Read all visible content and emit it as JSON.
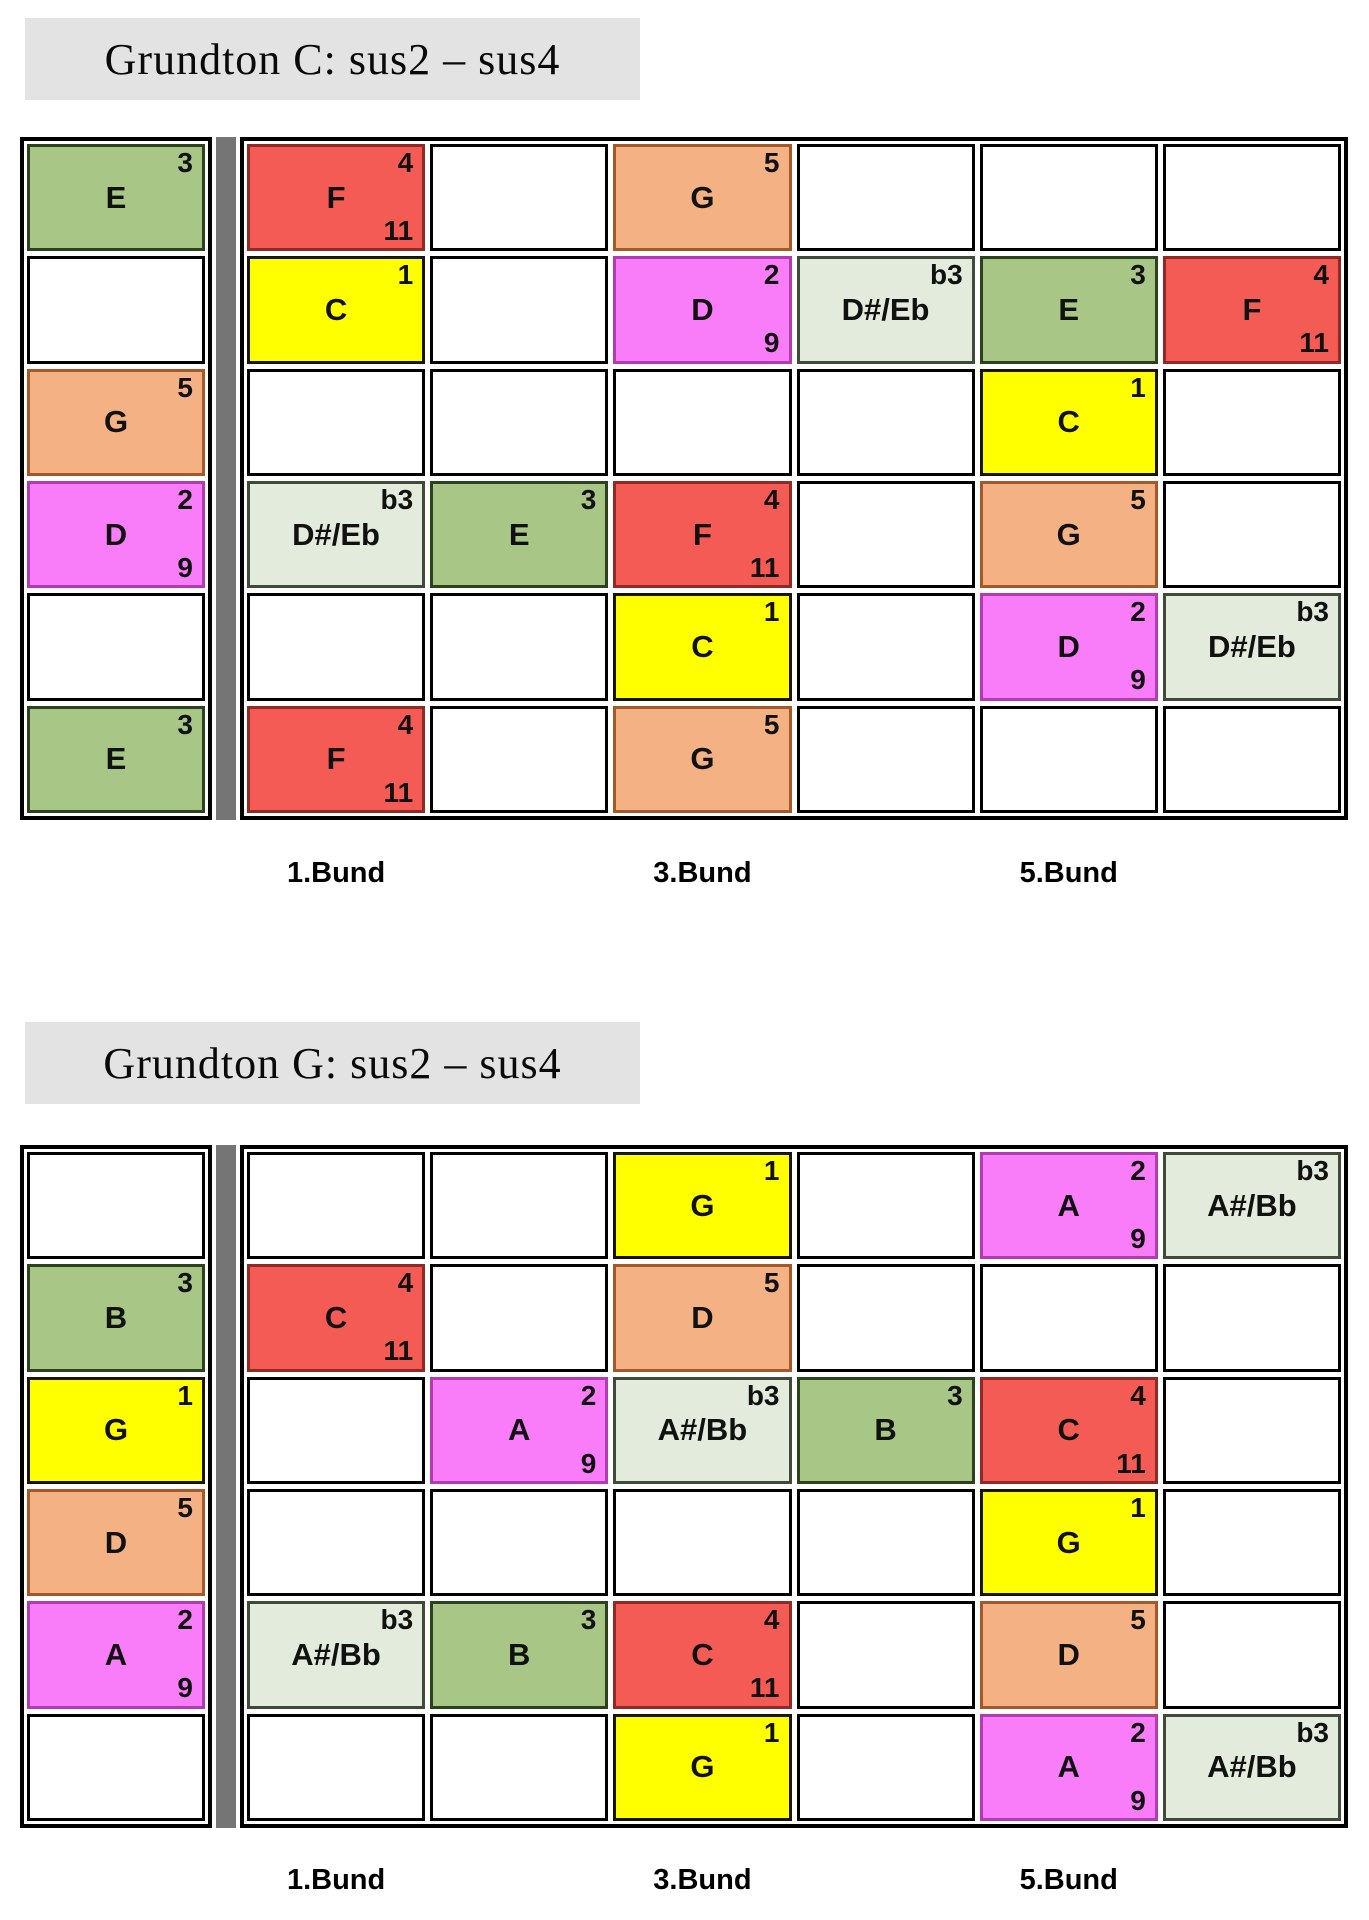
{
  "title_bg": "#E3E3E3",
  "nut_color": "#757575",
  "colors": {
    "1": {
      "fill": "#FFFF00",
      "border": "#151500"
    },
    "2": {
      "fill": "#F97CF9",
      "border": "#B03CB0"
    },
    "b3": {
      "fill": "#E3ECDC",
      "border": "#3F4A38"
    },
    "3": {
      "fill": "#A8C686",
      "border": "#2C421E"
    },
    "4": {
      "fill": "#F55B55",
      "border": "#8F2A24"
    },
    "5": {
      "fill": "#F4B183",
      "border": "#A35A28"
    }
  },
  "diagrams": [
    {
      "title": "Grundton C: sus2 – sus4",
      "fret_labels": [
        "1.Bund",
        "3.Bund",
        "5.Bund"
      ],
      "rows": [
        {
          "open": {
            "note": "E",
            "deg": "3"
          },
          "frets": [
            {
              "note": "F",
              "deg": "4",
              "ext": "11"
            },
            null,
            {
              "note": "G",
              "deg": "5"
            },
            null,
            null,
            null
          ]
        },
        {
          "open": null,
          "frets": [
            {
              "note": "C",
              "deg": "1"
            },
            null,
            {
              "note": "D",
              "deg": "2",
              "ext": "9"
            },
            {
              "note": "D#/Eb",
              "deg": "b3"
            },
            {
              "note": "E",
              "deg": "3"
            },
            {
              "note": "F",
              "deg": "4",
              "ext": "11"
            }
          ]
        },
        {
          "open": {
            "note": "G",
            "deg": "5"
          },
          "frets": [
            null,
            null,
            null,
            null,
            {
              "note": "C",
              "deg": "1"
            },
            null
          ]
        },
        {
          "open": {
            "note": "D",
            "deg": "2",
            "ext": "9"
          },
          "frets": [
            {
              "note": "D#/Eb",
              "deg": "b3"
            },
            {
              "note": "E",
              "deg": "3"
            },
            {
              "note": "F",
              "deg": "4",
              "ext": "11"
            },
            null,
            {
              "note": "G",
              "deg": "5"
            },
            null
          ]
        },
        {
          "open": null,
          "frets": [
            null,
            null,
            {
              "note": "C",
              "deg": "1"
            },
            null,
            {
              "note": "D",
              "deg": "2",
              "ext": "9"
            },
            {
              "note": "D#/Eb",
              "deg": "b3"
            }
          ]
        },
        {
          "open": {
            "note": "E",
            "deg": "3"
          },
          "frets": [
            {
              "note": "F",
              "deg": "4",
              "ext": "11"
            },
            null,
            {
              "note": "G",
              "deg": "5"
            },
            null,
            null,
            null
          ]
        }
      ]
    },
    {
      "title": "Grundton G: sus2 – sus4",
      "fret_labels": [
        "1.Bund",
        "3.Bund",
        "5.Bund"
      ],
      "rows": [
        {
          "open": null,
          "frets": [
            null,
            null,
            {
              "note": "G",
              "deg": "1"
            },
            null,
            {
              "note": "A",
              "deg": "2",
              "ext": "9"
            },
            {
              "note": "A#/Bb",
              "deg": "b3"
            }
          ]
        },
        {
          "open": {
            "note": "B",
            "deg": "3"
          },
          "frets": [
            {
              "note": "C",
              "deg": "4",
              "ext": "11"
            },
            null,
            {
              "note": "D",
              "deg": "5"
            },
            null,
            null,
            null
          ]
        },
        {
          "open": {
            "note": "G",
            "deg": "1"
          },
          "frets": [
            null,
            {
              "note": "A",
              "deg": "2",
              "ext": "9"
            },
            {
              "note": "A#/Bb",
              "deg": "b3"
            },
            {
              "note": "B",
              "deg": "3"
            },
            {
              "note": "C",
              "deg": "4",
              "ext": "11"
            },
            null
          ]
        },
        {
          "open": {
            "note": "D",
            "deg": "5"
          },
          "frets": [
            null,
            null,
            null,
            null,
            {
              "note": "G",
              "deg": "1"
            },
            null
          ]
        },
        {
          "open": {
            "note": "A",
            "deg": "2",
            "ext": "9"
          },
          "frets": [
            {
              "note": "A#/Bb",
              "deg": "b3"
            },
            {
              "note": "B",
              "deg": "3"
            },
            {
              "note": "C",
              "deg": "4",
              "ext": "11"
            },
            null,
            {
              "note": "D",
              "deg": "5"
            },
            null
          ]
        },
        {
          "open": null,
          "frets": [
            null,
            null,
            {
              "note": "G",
              "deg": "1"
            },
            null,
            {
              "note": "A",
              "deg": "2",
              "ext": "9"
            },
            {
              "note": "A#/Bb",
              "deg": "b3"
            }
          ]
        }
      ]
    }
  ]
}
